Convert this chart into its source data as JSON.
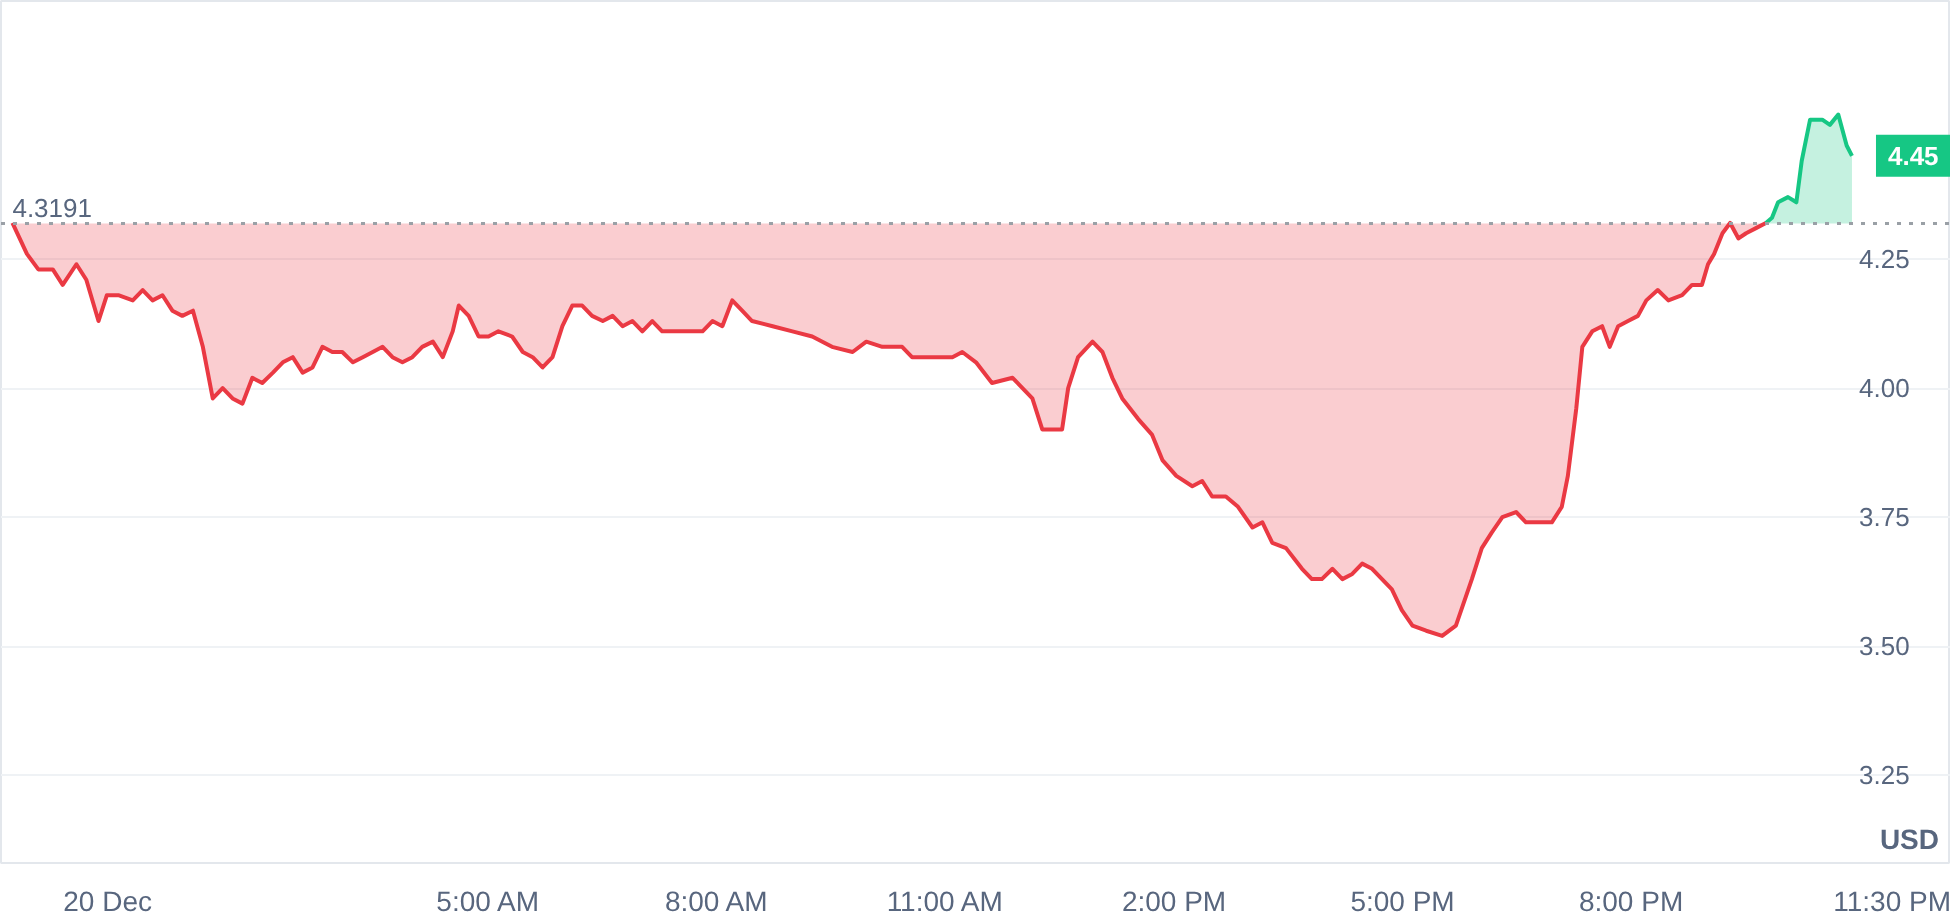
{
  "chart_data": {
    "type": "area",
    "xlim": [
      -1.4,
      24.2
    ],
    "ylim": [
      3.08,
      4.75
    ],
    "xticks": [
      {
        "value": 0,
        "label": "20 Dec"
      },
      {
        "value": 5,
        "label": "5:00 AM"
      },
      {
        "value": 8,
        "label": "8:00 AM"
      },
      {
        "value": 11,
        "label": "11:00 AM"
      },
      {
        "value": 14,
        "label": "2:00 PM"
      },
      {
        "value": 17,
        "label": "5:00 PM"
      },
      {
        "value": 20,
        "label": "8:00 PM"
      },
      {
        "value": 23.5,
        "label": "11:30 PM"
      }
    ],
    "yticks": [
      {
        "value": 3.25,
        "label": "3.25"
      },
      {
        "value": 3.5,
        "label": "3.50"
      },
      {
        "value": 3.75,
        "label": "3.75"
      },
      {
        "value": 4.0,
        "label": "4.00"
      },
      {
        "value": 4.25,
        "label": "4.25"
      }
    ],
    "ylabel": "USD",
    "grid": "y",
    "ref_lines": [
      {
        "axis": "y",
        "value": 4.3191,
        "label": "4.3191",
        "line_style": "dotted",
        "color": "#9aa0a6"
      }
    ],
    "annotations": [
      {
        "text": "4.45",
        "x": 22.9,
        "y": 4.45
      }
    ],
    "series": [
      {
        "color": "#ea3943",
        "x": [
          -1.25,
          -1.06,
          -0.91,
          -0.72,
          -0.59,
          -0.41,
          -0.28,
          -0.12,
          -0.01,
          0.14,
          0.33,
          0.46,
          0.59,
          0.72,
          0.85,
          0.98,
          1.12,
          1.25,
          1.38,
          1.51,
          1.64,
          1.77,
          1.9,
          2.03,
          2.17,
          2.3,
          2.43,
          2.56,
          2.69,
          2.82,
          2.95,
          3.08,
          3.22,
          3.35,
          3.48,
          3.61,
          3.74,
          3.87,
          4.0,
          4.13,
          4.27,
          4.4,
          4.53,
          4.61,
          4.74,
          4.87,
          5.0,
          5.13,
          5.31,
          5.45,
          5.58,
          5.71,
          5.84,
          5.97,
          6.1,
          6.23,
          6.36,
          6.5,
          6.63,
          6.76,
          6.89,
          7.02,
          7.15,
          7.28,
          7.55,
          7.81,
          7.94,
          8.07,
          8.2,
          8.33,
          8.46,
          8.73,
          8.99,
          9.25,
          9.51,
          9.78,
          9.96,
          10.17,
          10.43,
          10.56,
          10.83,
          11.09,
          11.22,
          11.4,
          11.61,
          11.88,
          12.01,
          12.14,
          12.27,
          12.53,
          12.61,
          12.74,
          12.93,
          13.06,
          13.19,
          13.32,
          13.53,
          13.71,
          13.85,
          14.03,
          14.24,
          14.37,
          14.5,
          14.68,
          14.84,
          15.03,
          15.16,
          15.29,
          15.47,
          15.68,
          15.81,
          15.94,
          16.08,
          16.21,
          16.34,
          16.47,
          16.6,
          16.73,
          16.86,
          16.99,
          17.13,
          17.31,
          17.52,
          17.7,
          17.91,
          18.04,
          18.17,
          18.31,
          18.49,
          18.62,
          18.78,
          18.96,
          19.09,
          19.17,
          19.28,
          19.36,
          19.49,
          19.62,
          19.72,
          19.83,
          19.96,
          20.09,
          20.2,
          20.35,
          20.49,
          20.67,
          20.8,
          20.93,
          21.01,
          21.09,
          21.2,
          21.3,
          21.41,
          21.51,
          21.64,
          21.77
        ],
        "values": [
          4.32,
          4.26,
          4.23,
          4.23,
          4.2,
          4.24,
          4.21,
          4.13,
          4.18,
          4.18,
          4.17,
          4.19,
          4.17,
          4.18,
          4.15,
          4.14,
          4.15,
          4.08,
          3.98,
          4.0,
          3.98,
          3.97,
          4.02,
          4.01,
          4.03,
          4.05,
          4.06,
          4.03,
          4.04,
          4.08,
          4.07,
          4.07,
          4.05,
          4.06,
          4.07,
          4.08,
          4.06,
          4.05,
          4.06,
          4.08,
          4.09,
          4.06,
          4.11,
          4.16,
          4.14,
          4.1,
          4.1,
          4.11,
          4.1,
          4.07,
          4.06,
          4.04,
          4.06,
          4.12,
          4.16,
          4.16,
          4.14,
          4.13,
          4.14,
          4.12,
          4.13,
          4.11,
          4.13,
          4.11,
          4.11,
          4.11,
          4.13,
          4.12,
          4.17,
          4.15,
          4.13,
          4.12,
          4.11,
          4.1,
          4.08,
          4.07,
          4.09,
          4.08,
          4.08,
          4.06,
          4.06,
          4.06,
          4.07,
          4.05,
          4.01,
          4.02,
          4.0,
          3.98,
          3.92,
          3.92,
          4.0,
          4.06,
          4.09,
          4.07,
          4.02,
          3.98,
          3.94,
          3.91,
          3.86,
          3.83,
          3.81,
          3.82,
          3.79,
          3.79,
          3.77,
          3.73,
          3.74,
          3.7,
          3.69,
          3.65,
          3.63,
          3.63,
          3.65,
          3.63,
          3.64,
          3.66,
          3.65,
          3.63,
          3.61,
          3.57,
          3.54,
          3.53,
          3.52,
          3.54,
          3.63,
          3.69,
          3.72,
          3.75,
          3.76,
          3.74,
          3.74,
          3.74,
          3.77,
          3.83,
          3.96,
          4.08,
          4.11,
          4.12,
          4.08,
          4.12,
          4.13,
          4.14,
          4.17,
          4.19,
          4.17,
          4.18,
          4.2,
          4.2,
          4.24,
          4.26,
          4.3,
          4.32,
          4.29,
          4.3,
          4.31,
          4.32
        ]
      },
      {
        "color": "#16c784",
        "x": [
          21.77,
          21.85,
          21.93,
          22.06,
          22.17,
          22.24,
          22.35,
          22.51,
          22.61,
          22.72,
          22.83,
          22.9
        ],
        "values": [
          4.32,
          4.33,
          4.36,
          4.37,
          4.36,
          4.44,
          4.52,
          4.52,
          4.51,
          4.53,
          4.47,
          4.45
        ]
      }
    ]
  }
}
